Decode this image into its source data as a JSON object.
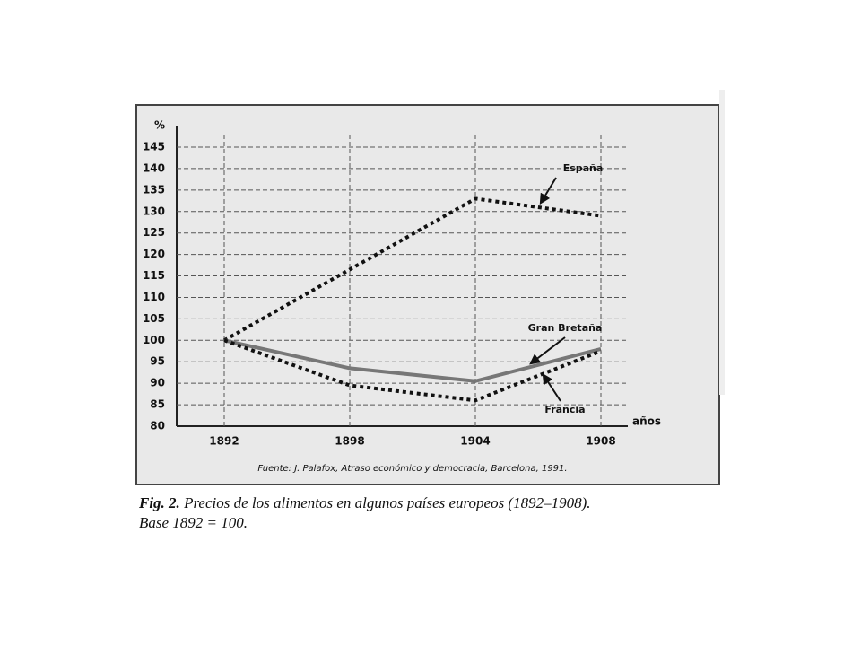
{
  "chart_data": {
    "type": "line",
    "figure_label": "Fig. 2.",
    "title": "Precios de los alimentos en algunos países europeos (1892–1908).",
    "subtitle": "Base 1892 = 100.",
    "source": "Fuente: J. Palafox, Atraso económico y democracia, Barcelona, 1991.",
    "y_label": "%",
    "x_label": "años",
    "categories": [
      "1892",
      "1898",
      "1904",
      "1908"
    ],
    "series": [
      {
        "name": "España",
        "color": "#111111",
        "style": "dotted",
        "values": [
          100,
          116.5,
          133,
          129
        ]
      },
      {
        "name": "Gran Bretaña",
        "color": "#777777",
        "style": "solid",
        "values": [
          100,
          93.5,
          90.5,
          98
        ]
      },
      {
        "name": "Francia",
        "color": "#111111",
        "style": "dotted",
        "values": [
          100,
          89.5,
          86,
          97.5
        ]
      }
    ],
    "ylim": [
      80,
      145
    ],
    "yticks": [
      80,
      85,
      90,
      95,
      100,
      105,
      110,
      115,
      120,
      125,
      130,
      135,
      140,
      145
    ],
    "grid": true
  }
}
